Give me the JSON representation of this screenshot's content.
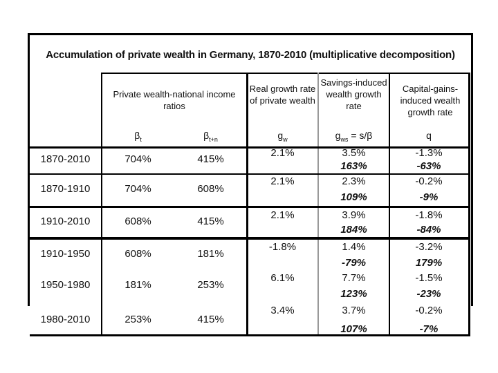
{
  "slide": {
    "title": "Accumulation of private wealth in Germany, 1870-2010 (multiplicative decomposition)"
  },
  "table": {
    "column_headers": [
      "Private wealth-national income ratios",
      "Real growth rate of private wealth",
      "Savings-induced wealth growth rate",
      "Capital-gains-induced wealth growth rate"
    ],
    "sub_headers": [
      {
        "base": "β",
        "sub": "t",
        "suffix": ""
      },
      {
        "base": "β",
        "sub": "t+n",
        "suffix": ""
      },
      {
        "base": "g",
        "sub": "w",
        "suffix": ""
      },
      {
        "base": "g",
        "sub": "ws",
        "suffix": " = s/β"
      },
      {
        "base": "q",
        "sub": "",
        "suffix": ""
      }
    ],
    "rows": [
      {
        "period": "1870-2010",
        "beta_t": "704%",
        "beta_tn": "415%",
        "g_w": "2.1%",
        "g_ws": "3.5%",
        "g_ws_cum": "163%",
        "q": "-1.3%",
        "q_cum": "-63%"
      },
      {
        "period": "1870-1910",
        "beta_t": "704%",
        "beta_tn": "608%",
        "g_w": "2.1%",
        "g_ws": "2.3%",
        "g_ws_cum": "109%",
        "q": "-0.2%",
        "q_cum": "-9%"
      },
      {
        "period": "1910-2010",
        "beta_t": "608%",
        "beta_tn": "415%",
        "g_w": "2.1%",
        "g_ws": "3.9%",
        "g_ws_cum": "184%",
        "q": "-1.8%",
        "q_cum": "-84%"
      },
      {
        "period": "1910-1950",
        "beta_t": "608%",
        "beta_tn": "181%",
        "g_w": "-1.8%",
        "g_ws": "1.4%",
        "g_ws_cum": "-79%",
        "q": "-3.2%",
        "q_cum": "179%"
      },
      {
        "period": "1950-1980",
        "beta_t": "181%",
        "beta_tn": "253%",
        "g_w": "6.1%",
        "g_ws": "7.7%",
        "g_ws_cum": "123%",
        "q": "-1.5%",
        "q_cum": "-23%"
      },
      {
        "period": "1980-2010",
        "beta_t": "253%",
        "beta_tn": "415%",
        "g_w": "3.4%",
        "g_ws": "3.7%",
        "g_ws_cum": "107%",
        "q": "-0.2%",
        "q_cum": "-7%"
      }
    ]
  },
  "colors": {
    "border": "#000000",
    "light_divider": "#999999",
    "background": "#ffffff",
    "text": "#111111"
  }
}
